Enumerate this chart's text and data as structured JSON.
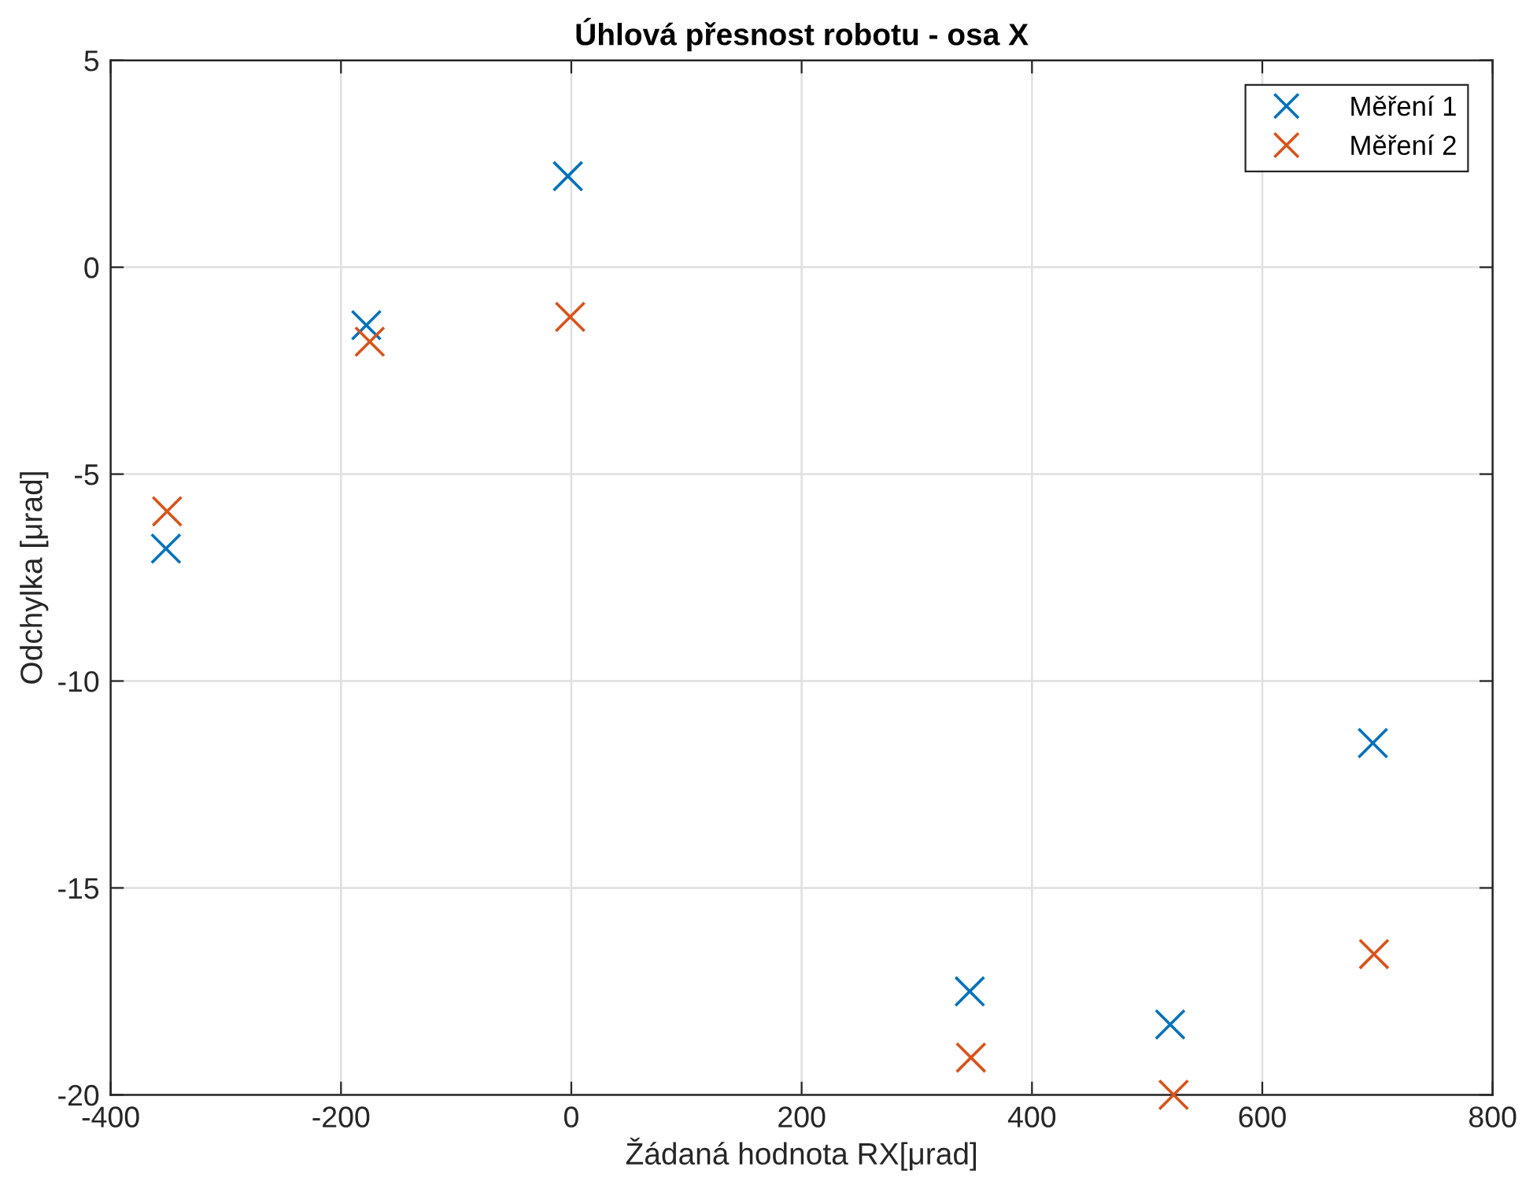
{
  "chart_data": {
    "type": "scatter",
    "title": "Úhlová přesnost robotu - osa X",
    "xlabel": "Žádaná hodnota RX[μrad]",
    "ylabel": "Odchylka [μrad]",
    "series": [
      {
        "name": "Měření 1",
        "color": "#0072bd",
        "x": [
          -352,
          -178,
          -3,
          346,
          520,
          696
        ],
        "values": [
          -6.8,
          -1.4,
          2.2,
          -17.5,
          -18.3,
          -11.5
        ]
      },
      {
        "name": "Měření 2",
        "color": "#d95319",
        "x": [
          -351,
          -175,
          -1,
          347,
          523,
          697
        ],
        "values": [
          -5.9,
          -1.8,
          -1.2,
          -19.1,
          -20,
          -16.6
        ]
      }
    ],
    "xlim": [
      -400,
      800
    ],
    "xticks": [
      -400,
      -200,
      0,
      200,
      400,
      600,
      800
    ],
    "ylim": [
      -20,
      5
    ],
    "yticks": [
      -20,
      -15,
      -10,
      -5,
      0,
      5
    ],
    "grid": true,
    "legend": "top right",
    "marker": "cross"
  }
}
